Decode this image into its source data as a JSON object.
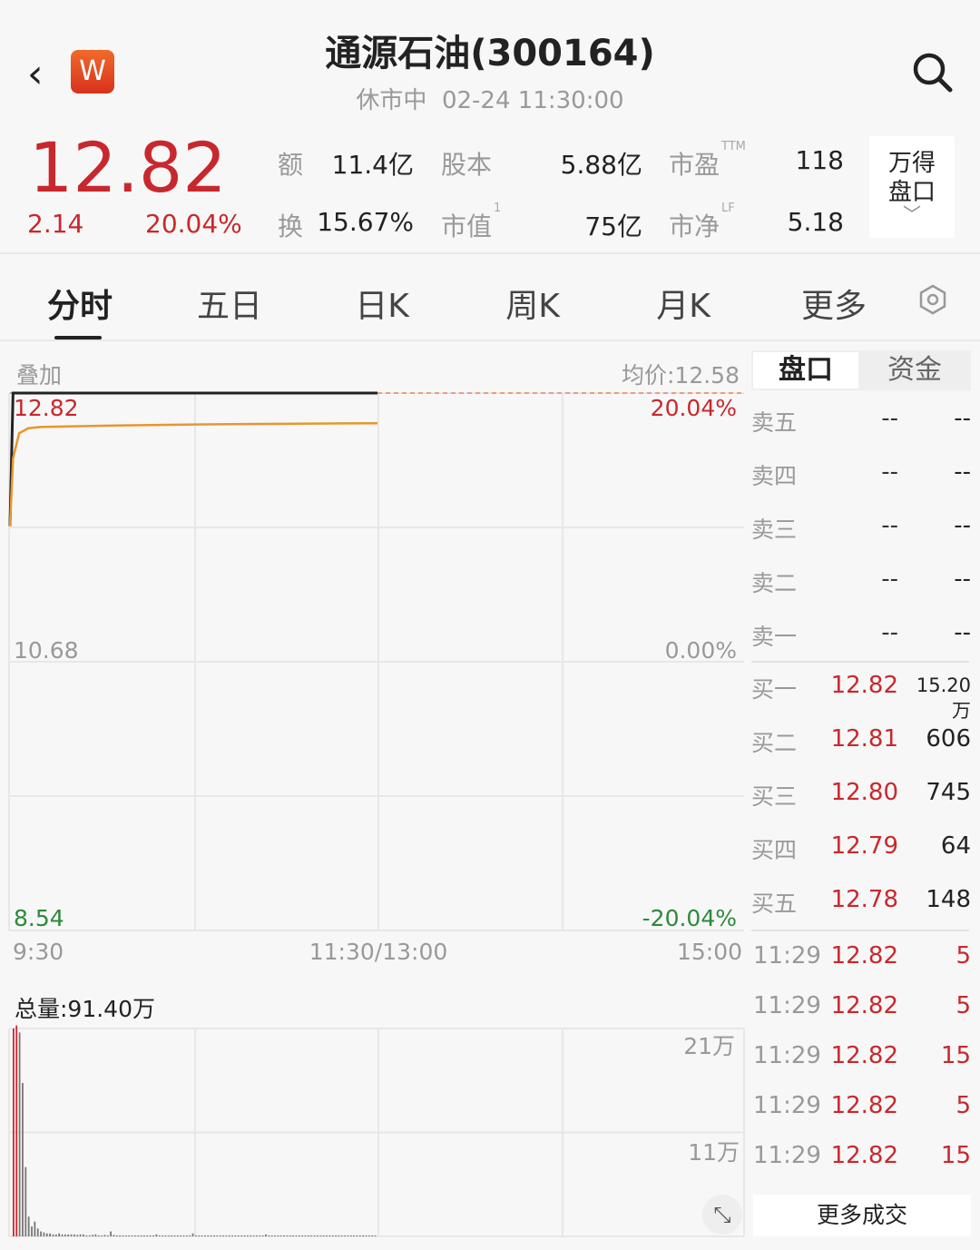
{
  "header": {
    "title": "通源石油(300164)",
    "status": "休市中",
    "datetime": "02-24 11:30:00",
    "back_icon": "chevron-left",
    "logo_text": "W",
    "search_icon": "search"
  },
  "quote": {
    "price": "12.82",
    "change": "2.14",
    "change_pct": "20.04%",
    "stats": [
      {
        "label": "额",
        "value": "11.4亿"
      },
      {
        "label": "股本",
        "value": "5.88亿"
      },
      {
        "label": "市盈",
        "sup": "TTM",
        "value": "118"
      },
      {
        "label": "换",
        "value": "15.67%"
      },
      {
        "label": "市值",
        "sup": "1",
        "value": "75亿"
      },
      {
        "label": "市净",
        "sup": "LF",
        "value": "5.18"
      }
    ],
    "wind_button": {
      "line1": "万得",
      "line2": "盘口"
    }
  },
  "tabs": [
    {
      "label": "分时",
      "active": true
    },
    {
      "label": "五日"
    },
    {
      "label": "日K"
    },
    {
      "label": "周K"
    },
    {
      "label": "月K"
    },
    {
      "label": "更多"
    }
  ],
  "chart_header": {
    "overlay": "叠加",
    "avg_price": "均价:12.58"
  },
  "chart_data": [
    {
      "type": "line",
      "y_ticks_left": [
        "12.82",
        "10.68",
        "8.54"
      ],
      "y_ticks_right": [
        "20.04%",
        "0.00%",
        "-20.04%"
      ],
      "x_ticks": [
        "9:30",
        "11:30/13:00",
        "15:00"
      ],
      "ylim": [
        8.54,
        12.82
      ],
      "series": [
        {
          "role": "price",
          "color": "#222222",
          "x": [
            0,
            1,
            2,
            120
          ],
          "y": [
            11.76,
            12.82,
            12.82,
            12.82
          ]
        },
        {
          "role": "avg",
          "color": "#e8962e",
          "x": [
            0,
            1,
            3,
            6,
            10,
            30,
            60,
            120
          ],
          "y": [
            11.76,
            12.3,
            12.5,
            12.54,
            12.55,
            12.56,
            12.57,
            12.58
          ]
        }
      ]
    },
    {
      "type": "bar",
      "title": "总量:91.40万",
      "y_ticks": [
        "21万",
        "11万"
      ],
      "ylim": [
        0,
        21
      ],
      "values": [
        21,
        21.3,
        20.6,
        15.5,
        7,
        2,
        1,
        1.5,
        0.8,
        0.5,
        0.4,
        0.3,
        0.3,
        0.2,
        0.2,
        0.3,
        0.2,
        0.2,
        0.2,
        0.2,
        0.2,
        0.15,
        0.2,
        0.2,
        0.1,
        0.1,
        0.15,
        0.2,
        0.1,
        0.1,
        0.15,
        0.1,
        0.5,
        0.15,
        0.1,
        0.1,
        0.1,
        0.1,
        0.1,
        0.1,
        0.1,
        0.1,
        0.1,
        0.1,
        0.1,
        0.1,
        0.1,
        0.2,
        0.1,
        0.1,
        0.1,
        0.1,
        0.1,
        0.1,
        0.1,
        0.1,
        0.1,
        0.1,
        0.1,
        0.3,
        0.1,
        0.1,
        0.1,
        0.1,
        0.1,
        0.1,
        0.1,
        0.1,
        0.1,
        0.1,
        0.1,
        0.1,
        0.1,
        0.1,
        0.1,
        0.1,
        0.1,
        0.1,
        0.1,
        0.1,
        0.1,
        0.1,
        0.1,
        0.2,
        0.1,
        0.1,
        0.1,
        0.1,
        0.1,
        0.1,
        0.1,
        0.1,
        0.1,
        0.1,
        0.1,
        0.1,
        0.1,
        0.1,
        0.1,
        0.1,
        0.1,
        0.1,
        0.1,
        0.1,
        0.1,
        0.1,
        0.1,
        0.1,
        0.1,
        0.1,
        0.1,
        0.1,
        0.1,
        0.1,
        0.1,
        0.1,
        0.1,
        0.1,
        0.1,
        0.1
      ],
      "up_bars": [
        0,
        1
      ]
    }
  ],
  "orderbook": {
    "tabs": [
      "盘口",
      "资金"
    ],
    "sell": [
      {
        "label": "卖五",
        "price": "--",
        "vol": "--"
      },
      {
        "label": "卖四",
        "price": "--",
        "vol": "--"
      },
      {
        "label": "卖三",
        "price": "--",
        "vol": "--"
      },
      {
        "label": "卖二",
        "price": "--",
        "vol": "--"
      },
      {
        "label": "卖一",
        "price": "--",
        "vol": "--"
      }
    ],
    "buy": [
      {
        "label": "买一",
        "price": "12.82",
        "vol": "15.20万"
      },
      {
        "label": "买二",
        "price": "12.81",
        "vol": "606"
      },
      {
        "label": "买三",
        "price": "12.80",
        "vol": "745"
      },
      {
        "label": "买四",
        "price": "12.79",
        "vol": "64"
      },
      {
        "label": "买五",
        "price": "12.78",
        "vol": "148"
      }
    ],
    "trades": [
      {
        "time": "11:29",
        "price": "12.82",
        "vol": "5"
      },
      {
        "time": "11:29",
        "price": "12.82",
        "vol": "5"
      },
      {
        "time": "11:29",
        "price": "12.82",
        "vol": "15"
      },
      {
        "time": "11:29",
        "price": "12.82",
        "vol": "5"
      },
      {
        "time": "11:29",
        "price": "12.82",
        "vol": "15"
      }
    ],
    "more_trades": "更多成交"
  },
  "colors": {
    "up": "#c8282d",
    "down": "#2c8a3a",
    "avg_line": "#e8962e"
  }
}
